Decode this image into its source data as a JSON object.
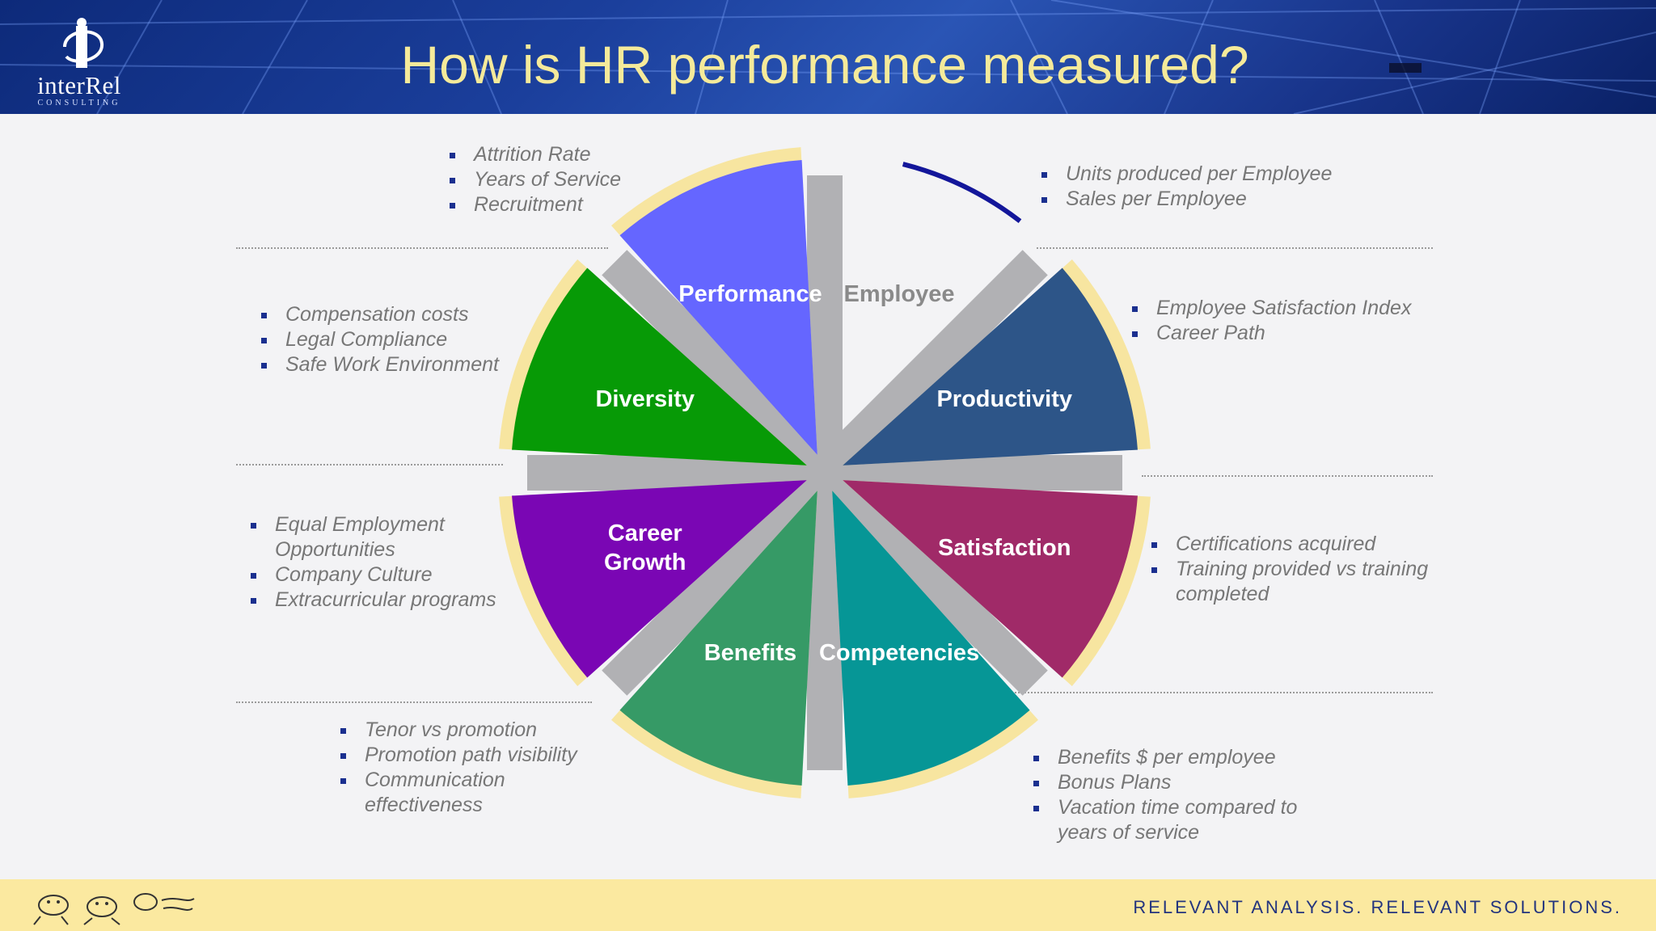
{
  "header": {
    "title": "How is HR performance measured?",
    "logo": {
      "name": "interRel",
      "sub": "CONSULTING",
      "icon": "interrel-logo-icon"
    }
  },
  "segments": [
    {
      "key": "employee",
      "label": "Employee",
      "color": "#f3f3f5"
    },
    {
      "key": "productivity",
      "label": "Productivity",
      "color": "#2d5588"
    },
    {
      "key": "satisfaction",
      "label": "Satisfaction",
      "color": "#a02a68"
    },
    {
      "key": "competencies",
      "label": "Competencies",
      "color": "#069696"
    },
    {
      "key": "benefits",
      "label": "Benefits",
      "color": "#369a66"
    },
    {
      "key": "career_growth",
      "label_lines": [
        "Career",
        "Growth"
      ],
      "color": "#7a06b4"
    },
    {
      "key": "diversity",
      "label": "Diversity",
      "color": "#079a06"
    },
    {
      "key": "performance",
      "label": "Performance",
      "color": "#6566ff"
    }
  ],
  "bullets": {
    "employee": [
      "Attrition Rate",
      "Years of Service",
      "Recruitment"
    ],
    "productivity": [
      "Units produced per Employee",
      "Sales per Employee"
    ],
    "satisfaction": [
      "Employee Satisfaction Index",
      "Career Path"
    ],
    "performance": [
      "Compensation costs",
      "Legal Compliance",
      "Safe Work Environment"
    ],
    "diversity": [
      "Equal Employment Opportunities",
      "Company Culture",
      "Extracurricular programs"
    ],
    "competencies": [
      "Certifications acquired",
      "Training provided vs training completed"
    ],
    "career_growth": [
      "Tenor vs promotion",
      "Promotion path visibility",
      "Communication effectiveness"
    ],
    "benefits": [
      "Benefits $ per employee",
      "Bonus Plans",
      "Vacation time compared to years of service"
    ]
  },
  "footer": {
    "tagline": "RELEVANT ANALYSIS. RELEVANT SOLUTIONS.",
    "mascot": "running-mascots-icon"
  }
}
